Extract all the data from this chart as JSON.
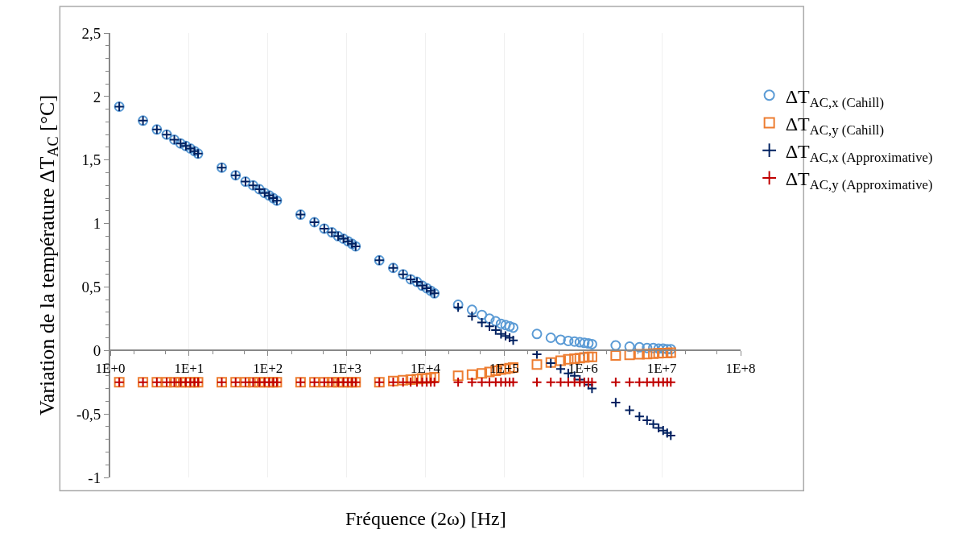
{
  "chart_data": {
    "type": "scatter",
    "xlabel": "Fréquence (2ω) [Hz]",
    "ylabel": "Variation de la température ΔT$_{AC}$ [°C]",
    "x": [
      1.3,
      2.6,
      3.9,
      5.2,
      6.5,
      7.8,
      9.1,
      10.4,
      11.7,
      13,
      26,
      39,
      52,
      65,
      78,
      91,
      104,
      117,
      130,
      260,
      390,
      520,
      650,
      780,
      910,
      1040,
      1170,
      1300,
      2600,
      3900,
      5200,
      6500,
      7800,
      9100,
      10400,
      11700,
      13000,
      26000,
      39000,
      52000,
      65000,
      78000,
      91000,
      104000,
      117000,
      130000,
      260000,
      390000,
      520000,
      650000,
      780000,
      910000,
      1040000,
      1170000,
      1300000,
      2600000,
      3900000,
      5200000,
      6500000,
      7800000,
      9100000,
      10400000,
      11700000,
      13000000
    ],
    "series": [
      {
        "name": "ΔT$_{AC,x (Cahill)}$",
        "color": "#5b9bd5",
        "marker": "circle",
        "values": [
          1.92,
          1.81,
          1.74,
          1.7,
          1.66,
          1.63,
          1.61,
          1.59,
          1.57,
          1.55,
          1.44,
          1.38,
          1.33,
          1.3,
          1.27,
          1.24,
          1.22,
          1.2,
          1.18,
          1.07,
          1.01,
          0.96,
          0.93,
          0.9,
          0.88,
          0.86,
          0.84,
          0.82,
          0.71,
          0.65,
          0.6,
          0.56,
          0.54,
          0.51,
          0.49,
          0.47,
          0.45,
          0.36,
          0.32,
          0.28,
          0.25,
          0.23,
          0.21,
          0.2,
          0.19,
          0.18,
          0.13,
          0.1,
          0.085,
          0.075,
          0.07,
          0.065,
          0.06,
          0.055,
          0.05,
          0.04,
          0.03,
          0.025,
          0.02,
          0.02,
          0.015,
          0.015,
          0.01,
          0.01
        ]
      },
      {
        "name": "ΔT$_{AC,y (Cahill)}$",
        "color": "#ed7d31",
        "marker": "square",
        "values": [
          -0.25,
          -0.25,
          -0.25,
          -0.25,
          -0.25,
          -0.25,
          -0.25,
          -0.25,
          -0.25,
          -0.25,
          -0.25,
          -0.25,
          -0.25,
          -0.25,
          -0.25,
          -0.25,
          -0.25,
          -0.25,
          -0.25,
          -0.25,
          -0.25,
          -0.25,
          -0.25,
          -0.25,
          -0.25,
          -0.25,
          -0.25,
          -0.25,
          -0.25,
          -0.24,
          -0.235,
          -0.23,
          -0.225,
          -0.22,
          -0.22,
          -0.215,
          -0.21,
          -0.2,
          -0.19,
          -0.18,
          -0.17,
          -0.16,
          -0.15,
          -0.145,
          -0.14,
          -0.135,
          -0.11,
          -0.095,
          -0.08,
          -0.07,
          -0.065,
          -0.06,
          -0.055,
          -0.05,
          -0.05,
          -0.04,
          -0.035,
          -0.03,
          -0.028,
          -0.025,
          -0.022,
          -0.02,
          -0.02,
          -0.018
        ]
      },
      {
        "name": "ΔT$_{AC,x (Approximative)}$",
        "color": "#002060",
        "marker": "cross",
        "values": [
          1.92,
          1.81,
          1.74,
          1.7,
          1.66,
          1.63,
          1.61,
          1.59,
          1.57,
          1.55,
          1.44,
          1.38,
          1.33,
          1.3,
          1.27,
          1.24,
          1.22,
          1.2,
          1.18,
          1.07,
          1.01,
          0.96,
          0.93,
          0.9,
          0.88,
          0.86,
          0.84,
          0.82,
          0.71,
          0.65,
          0.6,
          0.56,
          0.54,
          0.51,
          0.49,
          0.47,
          0.45,
          0.34,
          0.27,
          0.22,
          0.19,
          0.16,
          0.13,
          0.115,
          0.1,
          0.08,
          -0.03,
          -0.1,
          -0.145,
          -0.18,
          -0.2,
          -0.23,
          -0.25,
          -0.27,
          -0.3,
          -0.41,
          -0.47,
          -0.52,
          -0.55,
          -0.58,
          -0.61,
          -0.63,
          -0.65,
          -0.67
        ]
      },
      {
        "name": "ΔT$_{AC,y (Approximative)}$",
        "color": "#c00000",
        "marker": "cross",
        "values": [
          -0.25,
          -0.25,
          -0.25,
          -0.25,
          -0.25,
          -0.25,
          -0.25,
          -0.25,
          -0.25,
          -0.25,
          -0.25,
          -0.25,
          -0.25,
          -0.25,
          -0.25,
          -0.25,
          -0.25,
          -0.25,
          -0.25,
          -0.25,
          -0.25,
          -0.25,
          -0.25,
          -0.25,
          -0.25,
          -0.25,
          -0.25,
          -0.25,
          -0.25,
          -0.25,
          -0.25,
          -0.25,
          -0.25,
          -0.25,
          -0.25,
          -0.25,
          -0.25,
          -0.25,
          -0.25,
          -0.25,
          -0.25,
          -0.25,
          -0.25,
          -0.25,
          -0.25,
          -0.25,
          -0.25,
          -0.25,
          -0.25,
          -0.25,
          -0.25,
          -0.25,
          -0.25,
          -0.25,
          -0.25,
          -0.25,
          -0.25,
          -0.25,
          -0.25,
          -0.25,
          -0.25,
          -0.25,
          -0.25,
          -0.25
        ]
      }
    ],
    "log": "x",
    "xlim": [
      1,
      100000000
    ],
    "xticks": [
      {
        "value": 1,
        "label": "1E+0"
      },
      {
        "value": 10,
        "label": "1E+1"
      },
      {
        "value": 100,
        "label": "1E+2"
      },
      {
        "value": 1000,
        "label": "1E+3"
      },
      {
        "value": 10000,
        "label": "1E+4"
      },
      {
        "value": 100000,
        "label": "1E+5"
      },
      {
        "value": 1000000,
        "label": "1E+6"
      },
      {
        "value": 10000000,
        "label": "1E+7"
      },
      {
        "value": 100000000,
        "label": "1E+8"
      }
    ],
    "ylim": [
      -1,
      2.5
    ],
    "yticks": [
      {
        "value": -1,
        "label": "-1"
      },
      {
        "value": -0.5,
        "label": "-0,5"
      },
      0,
      {
        "value": 0.5,
        "label": "0,5"
      },
      1,
      {
        "value": 1.5,
        "label": "1,5"
      },
      2,
      {
        "value": 2.5,
        "label": "2,5"
      }
    ],
    "grid": "x",
    "legend": "right"
  }
}
